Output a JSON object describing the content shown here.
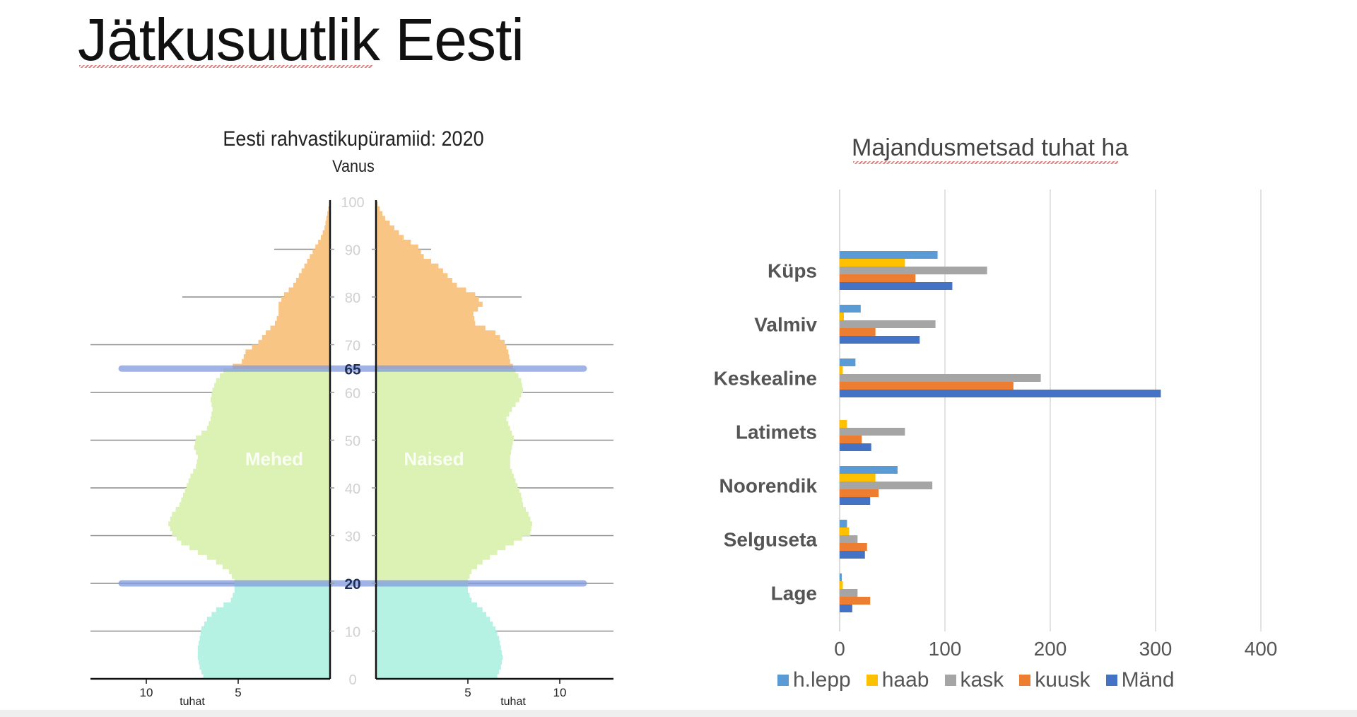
{
  "slide": {
    "title": "Jätkusuutlik Eesti"
  },
  "chart_data": [
    {
      "type": "bar",
      "subtype": "population-pyramid",
      "title": "Eesti rahvastikupüramiid: 2020",
      "ylabel": "Vanus",
      "xlabel_left": "tuhat",
      "xlabel_right": "tuhat",
      "left_label": "Mehed",
      "right_label": "Naised",
      "y_ticks": [
        0,
        10,
        20,
        30,
        40,
        50,
        60,
        70,
        80,
        90,
        100
      ],
      "highlight_ages": [
        20,
        65
      ],
      "x_ticks_left": [
        10,
        5
      ],
      "x_ticks_right": [
        5,
        10
      ],
      "xlim": [
        0,
        12
      ],
      "ylim": [
        0,
        100
      ],
      "age_groups": [
        {
          "name": "0-19",
          "color": "#b5f2e4"
        },
        {
          "name": "20-64",
          "color": "#dcf2b4"
        },
        {
          "name": "65+",
          "color": "#f9c585"
        }
      ],
      "ages": [
        0,
        2,
        4,
        6,
        8,
        10,
        12,
        14,
        16,
        18,
        20,
        22,
        24,
        26,
        28,
        30,
        32,
        34,
        36,
        38,
        40,
        42,
        44,
        46,
        48,
        50,
        52,
        54,
        56,
        58,
        60,
        62,
        64,
        66,
        68,
        70,
        72,
        74,
        76,
        78,
        80,
        82,
        84,
        86,
        88,
        90,
        92,
        94,
        96,
        98,
        100
      ],
      "series": [
        {
          "name": "Mehed",
          "values": [
            6.9,
            7.1,
            7.2,
            7.2,
            7.1,
            7.0,
            6.7,
            6.2,
            5.4,
            5.2,
            5.2,
            5.5,
            6.2,
            7.2,
            8.1,
            8.6,
            8.8,
            8.6,
            8.2,
            8.0,
            7.8,
            7.6,
            7.3,
            7.2,
            7.4,
            7.3,
            6.7,
            6.5,
            6.4,
            6.5,
            6.4,
            6.2,
            5.8,
            4.8,
            4.6,
            3.9,
            3.5,
            3.0,
            2.8,
            2.8,
            2.5,
            2.0,
            1.7,
            1.4,
            1.1,
            0.8,
            0.5,
            0.3,
            0.2,
            0.1,
            0.0
          ]
        },
        {
          "name": "Naised",
          "values": [
            6.6,
            6.8,
            6.9,
            6.8,
            6.7,
            6.5,
            6.2,
            5.8,
            5.2,
            5.0,
            5.0,
            5.2,
            5.8,
            6.6,
            7.5,
            8.4,
            8.5,
            8.3,
            8.0,
            7.9,
            7.7,
            7.5,
            7.3,
            7.3,
            7.4,
            7.5,
            7.3,
            7.1,
            7.4,
            7.8,
            8.0,
            7.9,
            7.6,
            7.3,
            7.2,
            7.0,
            6.5,
            5.4,
            5.3,
            5.8,
            5.4,
            4.4,
            3.9,
            3.4,
            2.6,
            2.3,
            1.5,
            1.0,
            0.5,
            0.2,
            0.0
          ]
        }
      ]
    },
    {
      "type": "bar",
      "orientation": "horizontal",
      "title": "Majandusmetsad tuhat ha",
      "xlabel": "",
      "ylabel": "",
      "xlim": [
        0,
        400
      ],
      "x_ticks": [
        0,
        100,
        200,
        300,
        400
      ],
      "grid": true,
      "legend_position": "bottom",
      "categories": [
        "Küps",
        "Valmiv",
        "Keskealine",
        "Latimets",
        "Noorendik",
        "Selguseta",
        "Lage"
      ],
      "series": [
        {
          "name": "h.lepp",
          "color": "#5b9bd5",
          "values": [
            93,
            20,
            15,
            0,
            55,
            7,
            2
          ]
        },
        {
          "name": "haab",
          "color": "#ffc000",
          "values": [
            62,
            4,
            3,
            7,
            34,
            9,
            3
          ]
        },
        {
          "name": "kask",
          "color": "#a5a5a5",
          "values": [
            140,
            91,
            191,
            62,
            88,
            17,
            17
          ]
        },
        {
          "name": "kuusk",
          "color": "#ed7d31",
          "values": [
            72,
            34,
            165,
            21,
            37,
            26,
            29
          ]
        },
        {
          "name": "Mänd",
          "color": "#4472c4",
          "values": [
            107,
            76,
            305,
            30,
            29,
            24,
            12
          ]
        }
      ]
    }
  ]
}
